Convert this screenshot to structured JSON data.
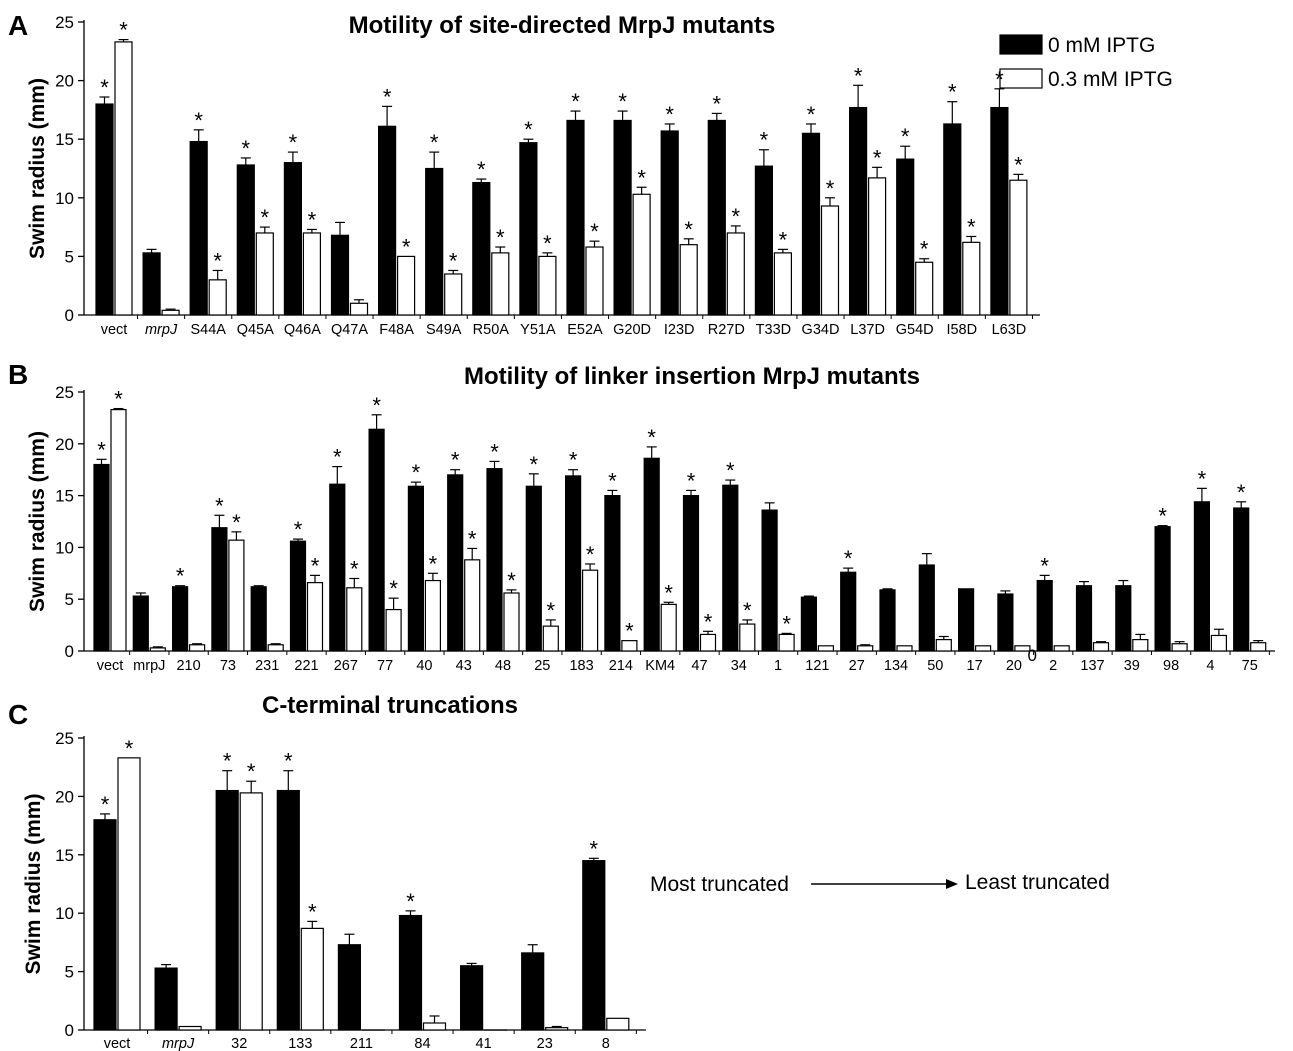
{
  "legend": {
    "black_label": "0 mM IPTG",
    "white_label": "0.3 mM IPTG",
    "black_color": "#000000",
    "white_color": "#ffffff"
  },
  "annotation": {
    "start_text": "Most truncated",
    "end_text": "Least truncated"
  },
  "chart_data": [
    {
      "panel": "A",
      "type": "bar",
      "title": "Motility of site-directed MrpJ mutants",
      "xlabel": "",
      "ylabel": "Swim radius (mm)",
      "ylim": [
        0,
        25
      ],
      "yticks": [
        0,
        5,
        10,
        15,
        20,
        25
      ],
      "categories": [
        "vect",
        "mrpJ",
        "S44A",
        "Q45A",
        "Q46A",
        "Q47A",
        "F48A",
        "S49A",
        "R50A",
        "Y51A",
        "E52A",
        "G20D",
        "I23D",
        "R27D",
        "T33D",
        "G34D",
        "L37D",
        "G54D",
        "I58D",
        "L63D"
      ],
      "italic_categories": [
        "mrpJ"
      ],
      "series": [
        {
          "name": "0 mM IPTG",
          "values": [
            18.0,
            5.3,
            14.8,
            12.8,
            13.0,
            6.8,
            16.1,
            12.5,
            11.3,
            14.7,
            16.6,
            16.6,
            15.7,
            16.6,
            12.7,
            15.5,
            17.7,
            13.3,
            16.3,
            17.7
          ],
          "errors": [
            0.6,
            0.3,
            1.0,
            0.6,
            0.9,
            1.1,
            1.7,
            1.4,
            0.3,
            0.3,
            0.8,
            0.8,
            0.6,
            0.6,
            1.4,
            0.8,
            1.9,
            1.1,
            1.9,
            1.6
          ],
          "stars": [
            true,
            false,
            true,
            true,
            true,
            false,
            true,
            true,
            true,
            true,
            true,
            true,
            true,
            true,
            true,
            true,
            true,
            true,
            true,
            true
          ]
        },
        {
          "name": "0.3 mM IPTG",
          "values": [
            23.3,
            0.4,
            3.0,
            7.0,
            7.0,
            1.0,
            5.0,
            3.5,
            5.3,
            5.0,
            5.8,
            10.3,
            6.0,
            7.0,
            5.3,
            9.3,
            11.7,
            4.5,
            6.2,
            11.5
          ],
          "errors": [
            0.2,
            0.1,
            0.8,
            0.5,
            0.3,
            0.3,
            0.0,
            0.3,
            0.5,
            0.3,
            0.5,
            0.6,
            0.5,
            0.6,
            0.3,
            0.7,
            0.9,
            0.3,
            0.5,
            0.5
          ],
          "stars": [
            true,
            false,
            true,
            true,
            true,
            false,
            true,
            true,
            true,
            true,
            true,
            true,
            true,
            true,
            true,
            true,
            true,
            true,
            true,
            true
          ]
        }
      ]
    },
    {
      "panel": "B",
      "type": "bar",
      "title": "Motility of linker insertion MrpJ mutants",
      "xlabel": "",
      "ylabel": "Swim radius (mm)",
      "ylim": [
        0,
        25
      ],
      "yticks": [
        0,
        5,
        10,
        15,
        20,
        25
      ],
      "categories": [
        "vect",
        "mrpJ",
        "210",
        "73",
        "231",
        "221",
        "267",
        "77",
        "40",
        "43",
        "48",
        "25",
        "183",
        "214",
        "KM4",
        "47",
        "34",
        "1",
        "121",
        "27",
        "134",
        "50",
        "17",
        "20",
        "2",
        "137",
        "39",
        "98",
        "4",
        "75"
      ],
      "italic_categories": [],
      "extra_labels": [
        {
          "text": "0",
          "after_category": 23
        }
      ],
      "series": [
        {
          "name": "0 mM IPTG",
          "values": [
            18.0,
            5.3,
            6.2,
            11.9,
            6.2,
            10.6,
            16.1,
            21.4,
            15.9,
            17.0,
            17.6,
            15.9,
            16.9,
            15.0,
            18.6,
            15.0,
            16.0,
            13.6,
            5.2,
            7.6,
            5.9,
            8.3,
            6.0,
            5.5,
            6.8,
            6.3,
            6.3,
            12.0,
            14.4,
            13.8
          ],
          "errors": [
            0.5,
            0.3,
            0.1,
            1.2,
            0.1,
            0.2,
            1.7,
            1.4,
            0.4,
            0.5,
            0.7,
            1.2,
            0.6,
            0.5,
            1.1,
            0.5,
            0.5,
            0.7,
            0.1,
            0.4,
            0.1,
            1.1,
            0.0,
            0.3,
            0.5,
            0.4,
            0.5,
            0.1,
            1.3,
            0.6
          ],
          "stars": [
            true,
            false,
            true,
            true,
            false,
            true,
            true,
            true,
            true,
            true,
            true,
            true,
            true,
            true,
            true,
            true,
            true,
            false,
            false,
            true,
            false,
            false,
            false,
            false,
            true,
            false,
            false,
            true,
            true,
            true
          ]
        },
        {
          "name": "0.3 mM IPTG",
          "values": [
            23.3,
            0.3,
            0.6,
            10.7,
            0.6,
            6.6,
            6.1,
            4.0,
            6.8,
            8.8,
            5.6,
            2.4,
            7.8,
            1.0,
            4.5,
            1.6,
            2.6,
            1.6,
            0.5,
            0.5,
            0.5,
            1.1,
            0.5,
            0.5,
            0.5,
            0.8,
            1.1,
            0.7,
            1.5,
            0.8
          ],
          "errors": [
            0.1,
            0.1,
            0.1,
            0.8,
            0.1,
            0.7,
            0.9,
            1.1,
            0.7,
            1.1,
            0.3,
            0.6,
            0.6,
            0.0,
            0.2,
            0.3,
            0.4,
            0.1,
            0.0,
            0.1,
            0.0,
            0.3,
            0.0,
            0.0,
            0.0,
            0.1,
            0.5,
            0.2,
            0.6,
            0.2
          ],
          "stars": [
            true,
            false,
            false,
            true,
            false,
            true,
            true,
            true,
            true,
            true,
            true,
            true,
            true,
            true,
            true,
            true,
            true,
            true,
            false,
            false,
            false,
            false,
            false,
            false,
            false,
            false,
            false,
            false,
            false,
            false
          ]
        }
      ]
    },
    {
      "panel": "C",
      "type": "bar",
      "title": "C-terminal truncations",
      "xlabel": "",
      "ylabel": "Swim radius (mm)",
      "ylim": [
        0,
        25
      ],
      "yticks": [
        0,
        5,
        10,
        15,
        20,
        25
      ],
      "categories": [
        "vect",
        "mrpJ",
        "32",
        "133",
        "211",
        "84",
        "41",
        "23",
        "8"
      ],
      "italic_categories": [
        "mrpJ"
      ],
      "series": [
        {
          "name": "0 mM IPTG",
          "values": [
            18.0,
            5.3,
            20.5,
            20.5,
            7.3,
            9.8,
            5.5,
            6.6,
            14.5
          ],
          "errors": [
            0.5,
            0.3,
            1.7,
            1.7,
            0.9,
            0.4,
            0.2,
            0.7,
            0.2
          ],
          "stars": [
            true,
            false,
            true,
            true,
            false,
            true,
            false,
            false,
            true
          ]
        },
        {
          "name": "0.3 mM IPTG",
          "values": [
            23.3,
            0.3,
            20.3,
            8.7,
            0.0,
            0.6,
            0.0,
            0.2,
            1.0
          ],
          "errors": [
            0.0,
            0.0,
            1.0,
            0.6,
            0.0,
            0.6,
            0.0,
            0.1,
            0.0
          ],
          "stars": [
            true,
            false,
            true,
            true,
            false,
            false,
            false,
            false,
            false
          ]
        }
      ]
    }
  ]
}
